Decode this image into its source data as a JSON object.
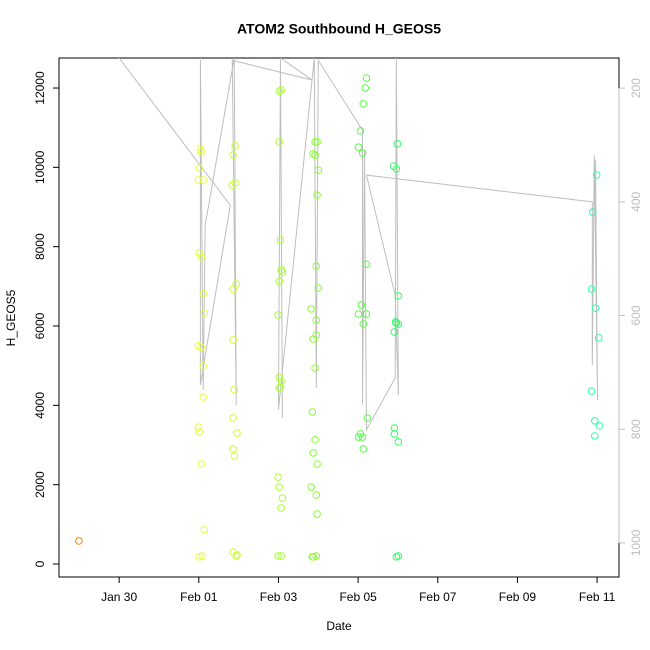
{
  "chart_data": {
    "type": "scatter",
    "title": "ATOM2 Southbound H_GEOS5",
    "xlabel": "Date",
    "ylabel": "H_GEOS5",
    "xlim": [
      28.49,
      42.55
    ],
    "ylim": [
      -328,
      12757
    ],
    "y2lim": [
      1060,
      147
    ],
    "xticks": [
      {
        "value": 30,
        "label": "Jan 30"
      },
      {
        "value": 32,
        "label": "Feb 01"
      },
      {
        "value": 34,
        "label": "Feb 03"
      },
      {
        "value": 36,
        "label": "Feb 05"
      },
      {
        "value": 38,
        "label": "Feb 07"
      },
      {
        "value": 40,
        "label": "Feb 09"
      },
      {
        "value": 42,
        "label": "Feb 11"
      }
    ],
    "yticks": [
      0,
      2000,
      4000,
      6000,
      8000,
      10000,
      12000
    ],
    "y2ticks": [
      200,
      400,
      600,
      800,
      1000
    ],
    "series": [
      {
        "type": "line",
        "axis": "y2",
        "color": "#bebebe",
        "x": [
          30.0,
          32.79,
          32.04,
          32.04,
          32.11,
          32.16,
          32.89,
          32.94,
          32.84,
          34.85,
          34.05,
          34.1,
          34.05,
          34.0,
          34.9,
          34.95,
          35.0,
          36.11,
          36.11,
          36.16,
          36.21,
          36.93,
          36.96,
          37.01,
          36.93,
          36.21,
          41.88,
          41.88,
          41.93,
          42.01,
          41.96
        ],
        "values": [
          147,
          406,
          722,
          147,
          731,
          441,
          147,
          757,
          151,
          186,
          147,
          780,
          151,
          766,
          147,
          727,
          151,
          274,
          757,
          309,
          801,
          710,
          147,
          740,
          564,
          353,
          400,
          687,
          318,
          749,
          327
        ]
      },
      {
        "color": "#ff8000",
        "x": [
          28.99
        ],
        "values": [
          580
        ]
      },
      {
        "color": "#e5ff33",
        "x": [
          32.04,
          32.06,
          32.01,
          32.11,
          31.99,
          32.01,
          32.06,
          32.11,
          32.14,
          31.99,
          32.06,
          32.11,
          32.11,
          31.99,
          32.01,
          32.06,
          32.14,
          32.01,
          32.09
        ],
        "values": [
          10460,
          10390,
          9980,
          9680,
          9680,
          7840,
          7740,
          6810,
          6330,
          5500,
          5470,
          4990,
          4210,
          3450,
          3330,
          2520,
          860,
          180,
          200
        ]
      },
      {
        "color": "#ccff33",
        "x": [
          32.91,
          32.86,
          32.91,
          32.84,
          32.94,
          32.86,
          32.86,
          32.89,
          32.86,
          32.96,
          32.86,
          32.89,
          32.86,
          32.94,
          32.96
        ],
        "values": [
          10540,
          10310,
          9610,
          9550,
          7060,
          6930,
          5650,
          4390,
          3680,
          3300,
          2900,
          2720,
          300,
          200,
          230
        ]
      },
      {
        "color": "#aaff33",
        "x": [
          34.07,
          34.02,
          34.02,
          34.05,
          34.07,
          34.1,
          34.02,
          33.99,
          34.02,
          34.07,
          34.05,
          34.02,
          33.99,
          34.02,
          34.1,
          34.07,
          33.99,
          34.07
        ],
        "values": [
          11950,
          11920,
          10640,
          8170,
          7410,
          7360,
          7130,
          6280,
          4710,
          4610,
          4460,
          4440,
          2190,
          1940,
          1660,
          1410,
          200,
          200
        ]
      },
      {
        "color": "#88ff33",
        "x": [
          34.97,
          34.92,
          34.87,
          34.92,
          35.0,
          34.97,
          34.95,
          35.0,
          34.82,
          34.95,
          34.95,
          34.87,
          34.92,
          34.85,
          34.92,
          34.87,
          34.97,
          34.82,
          34.95,
          34.97,
          34.87,
          34.95,
          34.85
        ],
        "values": [
          10640,
          10640,
          10340,
          10310,
          9930,
          9300,
          7510,
          6960,
          6430,
          6150,
          5770,
          5670,
          4940,
          3830,
          3130,
          2800,
          2520,
          1940,
          1740,
          1260,
          180,
          200,
          180
        ]
      },
      {
        "color": "#55ff44",
        "x": [
          36.21,
          36.18,
          36.13,
          36.06,
          36.01,
          36.11,
          36.21,
          36.08,
          36.01,
          36.21,
          36.13,
          36.23,
          36.06,
          36.01,
          36.11,
          36.13
        ],
        "values": [
          12250,
          12000,
          11600,
          10920,
          10510,
          10360,
          7560,
          6530,
          6300,
          6300,
          6050,
          3680,
          3280,
          3200,
          3200,
          2900
        ]
      },
      {
        "color": "#33ff66",
        "x": [
          36.99,
          36.89,
          36.96,
          37.01,
          36.94,
          36.96,
          37.01,
          36.91,
          36.91,
          36.91,
          37.01,
          36.96,
          37.01
        ],
        "values": [
          10590,
          10030,
          9960,
          6760,
          6100,
          6080,
          6050,
          5850,
          3430,
          3280,
          3080,
          180,
          200
        ]
      },
      {
        "color": "#33ffaa",
        "x": [
          41.99,
          41.89,
          41.86,
          41.96,
          42.04,
          41.86,
          41.94,
          42.06,
          41.94
        ],
        "values": [
          9810,
          8870,
          6930,
          6450,
          5700,
          4360,
          3610,
          3480,
          3230
        ]
      }
    ]
  }
}
